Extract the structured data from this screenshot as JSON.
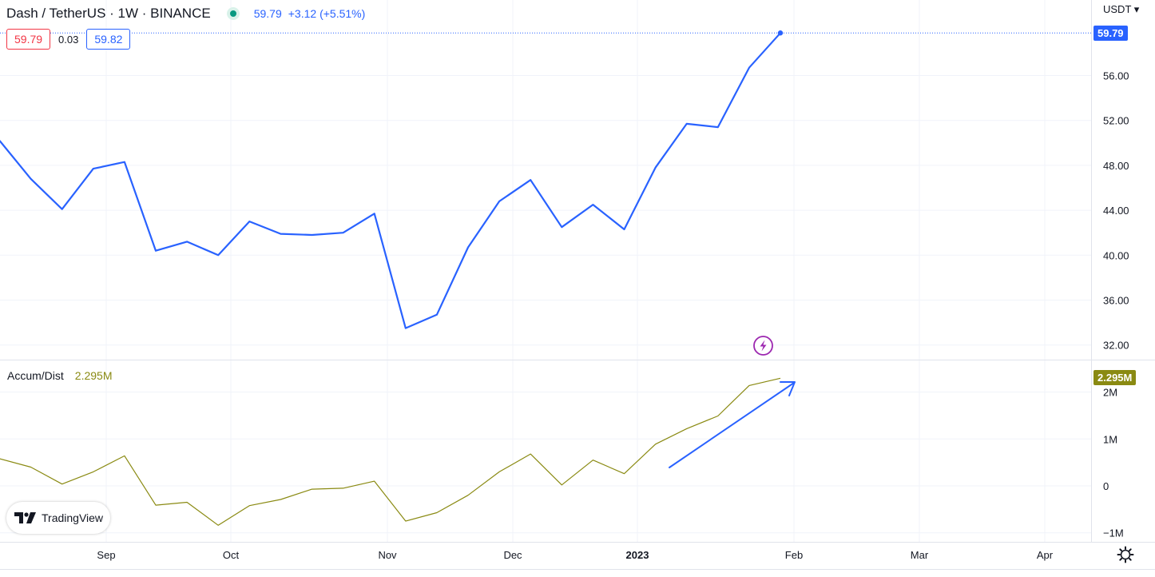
{
  "header": {
    "symbol": "Dash / TetherUS · 1W · BINANCE",
    "last_price": "59.79",
    "change": "+3.12 (+5.51%)"
  },
  "quote": {
    "bid": "59.79",
    "spread": "0.03",
    "ask": "59.82"
  },
  "price_axis": {
    "currency": "USDT",
    "currency_dropdown": "▾"
  },
  "indicator": {
    "name": "Accum/Dist",
    "value": "2.295M"
  },
  "branding": {
    "logo_text": "TradingView"
  },
  "colors": {
    "price_line": "#2962ff",
    "indicator_line": "#8a8a12",
    "annotation_arrow": "#2962ff",
    "event_icon": "#9c27b0"
  },
  "chart_data": [
    {
      "type": "line",
      "title": "Dash / TetherUS · 1W · BINANCE",
      "series": [
        {
          "name": "Dash / TetherUS",
          "values": [
            50.2,
            46.8,
            44.1,
            47.7,
            48.3,
            40.4,
            41.2,
            40.0,
            43.0,
            41.9,
            41.8,
            42.0,
            43.7,
            33.5,
            34.7,
            40.7,
            44.8,
            46.7,
            42.5,
            44.5,
            42.3,
            47.8,
            51.7,
            51.4,
            56.7,
            59.79
          ]
        }
      ],
      "x_ticks": [
        "Sep",
        "Oct",
        "Nov",
        "Dec",
        "2023",
        "Feb",
        "Mar",
        "Apr"
      ],
      "y_ticks": [
        "56.00",
        "52.00",
        "48.00",
        "44.00",
        "40.00",
        "36.00",
        "32.00"
      ],
      "ylim": [
        31,
        59.79
      ],
      "last_value_label": "59.79",
      "grid": true
    },
    {
      "type": "line",
      "title": "Accum/Dist",
      "series": [
        {
          "name": "Accum/Dist",
          "values": [
            0.58,
            0.4,
            0.04,
            0.3,
            0.64,
            -0.41,
            -0.35,
            -0.84,
            -0.42,
            -0.29,
            -0.07,
            -0.05,
            0.1,
            -0.75,
            -0.57,
            -0.2,
            0.3,
            0.68,
            0.02,
            0.55,
            0.26,
            0.89,
            1.22,
            1.49,
            2.14,
            2.295
          ]
        }
      ],
      "y_ticks": [
        "2M",
        "1M",
        "0",
        "−1M"
      ],
      "ylim": [
        -1,
        2.295
      ],
      "last_value_label": "2.295M",
      "grid": true
    }
  ]
}
